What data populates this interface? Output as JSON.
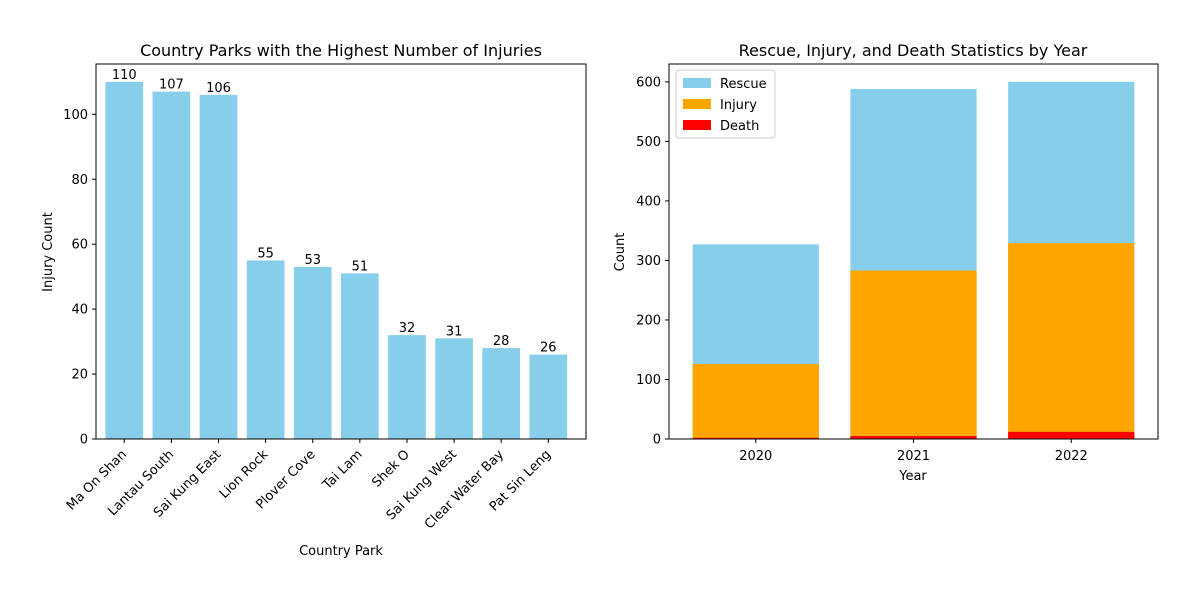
{
  "chart_data": [
    {
      "type": "bar",
      "title": "Country Parks with the Highest Number of Injuries",
      "xlabel": "Country Park",
      "ylabel": "Injury Count",
      "categories": [
        "Ma On Shan",
        "Lantau South",
        "Sai Kung East",
        "Lion Rock",
        "Plover Cove",
        "Tai Lam",
        "Shek O",
        "Sai Kung West",
        "Clear Water Bay",
        "Pat Sin Leng"
      ],
      "values": [
        110,
        107,
        106,
        55,
        53,
        51,
        32,
        31,
        28,
        26
      ],
      "ylim": [
        0,
        115.5
      ],
      "yticks": [
        0,
        20,
        40,
        60,
        80,
        100
      ],
      "data_labels": true,
      "color": "#87CEEB",
      "grid": false
    },
    {
      "type": "bar",
      "stacked": "overlay",
      "title": "Rescue, Injury, and Death Statistics by Year",
      "xlabel": "Year",
      "ylabel": "Count",
      "categories": [
        "2020",
        "2021",
        "2022"
      ],
      "series": [
        {
          "name": "Rescue",
          "values": [
            327,
            588,
            600
          ],
          "color": "#87CEEB"
        },
        {
          "name": "Injury",
          "values": [
            126,
            283,
            329
          ],
          "color": "#FFA500"
        },
        {
          "name": "Death",
          "values": [
            2,
            5,
            12
          ],
          "color": "#FF0000"
        }
      ],
      "ylim": [
        0,
        630
      ],
      "yticks": [
        0,
        100,
        200,
        300,
        400,
        500,
        600
      ],
      "legend": "top-left",
      "grid": false
    }
  ]
}
